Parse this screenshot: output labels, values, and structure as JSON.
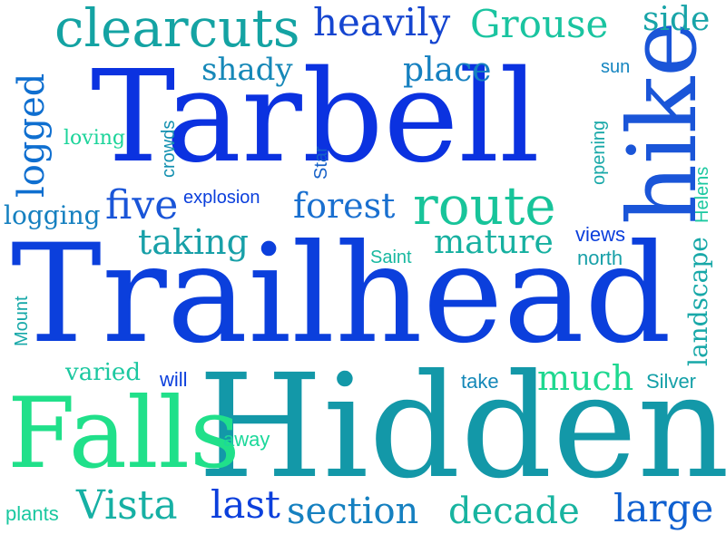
{
  "word_cloud": {
    "colors": [
      "#0b3fdc",
      "#0f5fd0",
      "#1080c0",
      "#14a3a3",
      "#18c49a",
      "#1fe08a"
    ],
    "words": [
      {
        "text": "Trailhead",
        "color": "#0b3fdc"
      },
      {
        "text": "Hidden",
        "color": "#1398a8"
      },
      {
        "text": "Tarbell",
        "color": "#0b32e0"
      },
      {
        "text": "Falls",
        "color": "#20e08a"
      },
      {
        "text": "hike",
        "color": "#1a55d8"
      },
      {
        "text": "clearcuts",
        "color": "#14a3a3"
      },
      {
        "text": "route",
        "color": "#18c49a"
      },
      {
        "text": "heavily",
        "color": "#1545d0"
      },
      {
        "text": "Grouse",
        "color": "#1ac4a0"
      },
      {
        "text": "side",
        "color": "#18a4a8"
      },
      {
        "text": "logged",
        "color": "#0f6fd0"
      },
      {
        "text": "shady",
        "color": "#1688b8"
      },
      {
        "text": "place",
        "color": "#1580c0"
      },
      {
        "text": "sun",
        "color": "#1585c0"
      },
      {
        "text": "loving",
        "color": "#1cd49a"
      },
      {
        "text": "crowds",
        "color": "#1390b0"
      },
      {
        "text": "Star",
        "color": "#1560c8"
      },
      {
        "text": "opening",
        "color": "#18a8a8"
      },
      {
        "text": "Helens",
        "color": "#1cc8a0"
      },
      {
        "text": "five",
        "color": "#1a55d8"
      },
      {
        "text": "explosion",
        "color": "#0b3fdc"
      },
      {
        "text": "forest",
        "color": "#1a70d0"
      },
      {
        "text": "logging",
        "color": "#1580c0"
      },
      {
        "text": "taking",
        "color": "#18a0a8"
      },
      {
        "text": "mature",
        "color": "#16b0a0"
      },
      {
        "text": "views",
        "color": "#0b3fdc"
      },
      {
        "text": "Saint",
        "color": "#18b8a0"
      },
      {
        "text": "north",
        "color": "#18a0a8"
      },
      {
        "text": "Mount",
        "color": "#16a8a8"
      },
      {
        "text": "landscape",
        "color": "#18a8a8"
      },
      {
        "text": "varied",
        "color": "#1cc8a0"
      },
      {
        "text": "will",
        "color": "#0b3fdc"
      },
      {
        "text": "take",
        "color": "#1488b8"
      },
      {
        "text": "much",
        "color": "#1fd890"
      },
      {
        "text": "Silver",
        "color": "#14a0a8"
      },
      {
        "text": "away",
        "color": "#1cd89a"
      },
      {
        "text": "plants",
        "color": "#1ac8a0"
      },
      {
        "text": "Vista",
        "color": "#16b0a4"
      },
      {
        "text": "last",
        "color": "#0b3fdc"
      },
      {
        "text": "section",
        "color": "#1580c0"
      },
      {
        "text": "decade",
        "color": "#18b4a0"
      },
      {
        "text": "large",
        "color": "#0f60d0"
      }
    ]
  }
}
